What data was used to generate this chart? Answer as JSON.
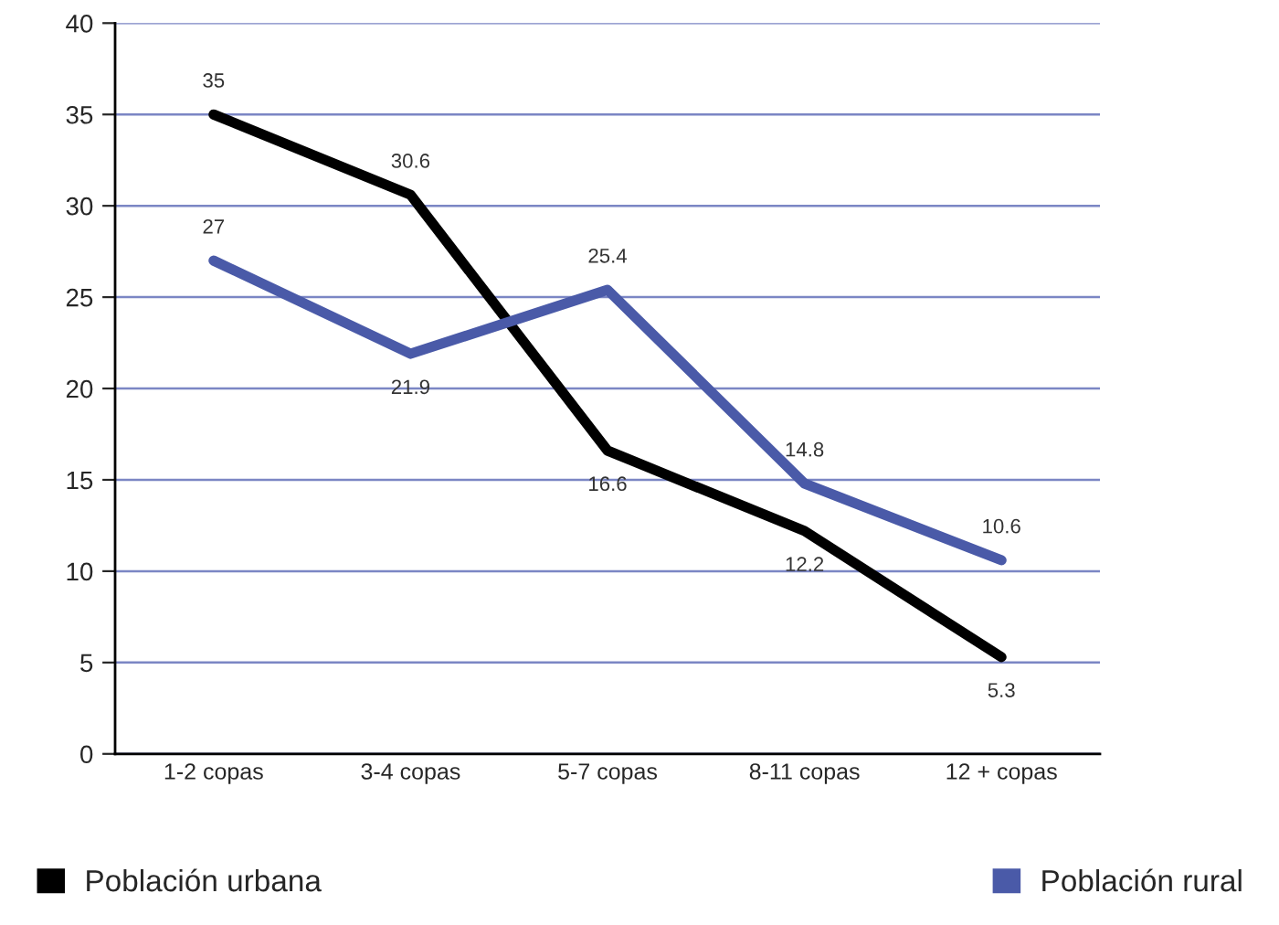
{
  "chart_data": {
    "type": "line",
    "categories": [
      "1-2 copas",
      "3-4 copas",
      "5-7 copas",
      "8-11 copas",
      "12 + copas"
    ],
    "series": [
      {
        "name": "Población urbana",
        "color": "#000000",
        "values": [
          35,
          30.6,
          16.6,
          12.2,
          5.3
        ]
      },
      {
        "name": "Población rural",
        "color": "#4a5aa8",
        "values": [
          27,
          21.9,
          25.4,
          14.8,
          10.6
        ]
      }
    ],
    "ylim": [
      0,
      40
    ],
    "yticks": [
      0,
      5,
      10,
      15,
      20,
      25,
      30,
      35,
      40
    ],
    "grid": "y",
    "legend": "bottom",
    "data_labels": true,
    "marker": "none",
    "line_style": "solid"
  }
}
